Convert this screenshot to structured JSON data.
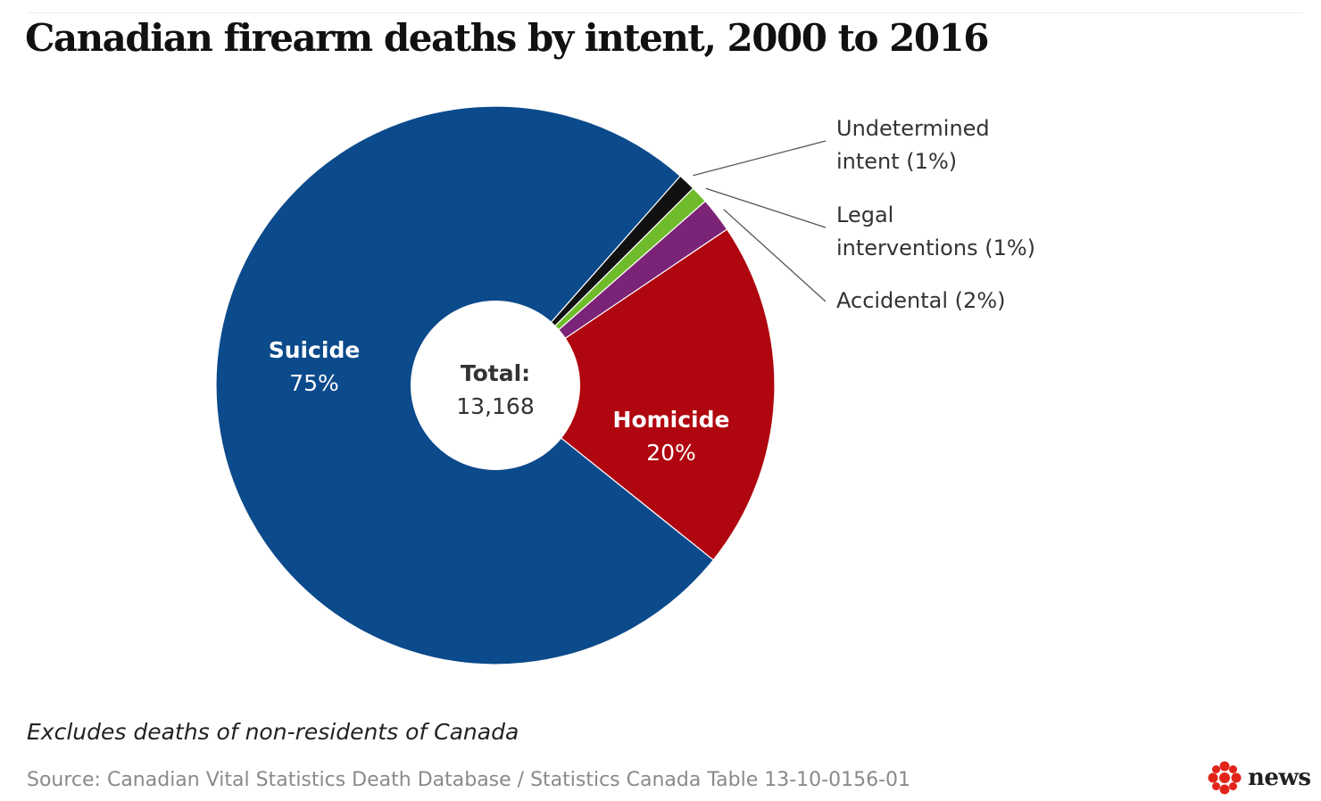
{
  "title": "Canadian firearm deaths by intent, 2000 to 2016",
  "note": "Excludes deaths of non-residents of Canada",
  "source": "Source: Canadian Vital Statistics Death Database / Statistics Canada Table 13-10-0156-01",
  "logo": {
    "word": "news",
    "icon": "cbc-gem-icon"
  },
  "colors": {
    "suicide": "#0b4a8b",
    "homicide": "#b0060f",
    "accidental": "#7b2376",
    "legal": "#6fbb2b",
    "undetermined": "#111111",
    "logo_red": "#e2231a"
  },
  "chart_data": {
    "type": "pie",
    "variant": "donut",
    "center": {
      "title": "Total:",
      "value": "13,168"
    },
    "slices": [
      {
        "name": "Suicide",
        "label": "Suicide",
        "pct_label": "75%",
        "value": 75,
        "color": "#0b4a8b",
        "label_position": "inside"
      },
      {
        "name": "Homicide",
        "label": "Homicide",
        "pct_label": "20%",
        "value": 20,
        "color": "#b0060f",
        "label_position": "inside"
      },
      {
        "name": "Accidental",
        "label_lines": [
          "Accidental (2%)"
        ],
        "value": 2,
        "color": "#7b2376",
        "label_position": "outside"
      },
      {
        "name": "Legal interventions",
        "label_lines": [
          "Legal",
          "interventions (1%)"
        ],
        "value": 1,
        "color": "#6fbb2b",
        "label_position": "outside"
      },
      {
        "name": "Undetermined intent",
        "label_lines": [
          "Undetermined",
          "intent (1%)"
        ],
        "value": 1,
        "color": "#111111",
        "label_position": "outside"
      }
    ]
  }
}
